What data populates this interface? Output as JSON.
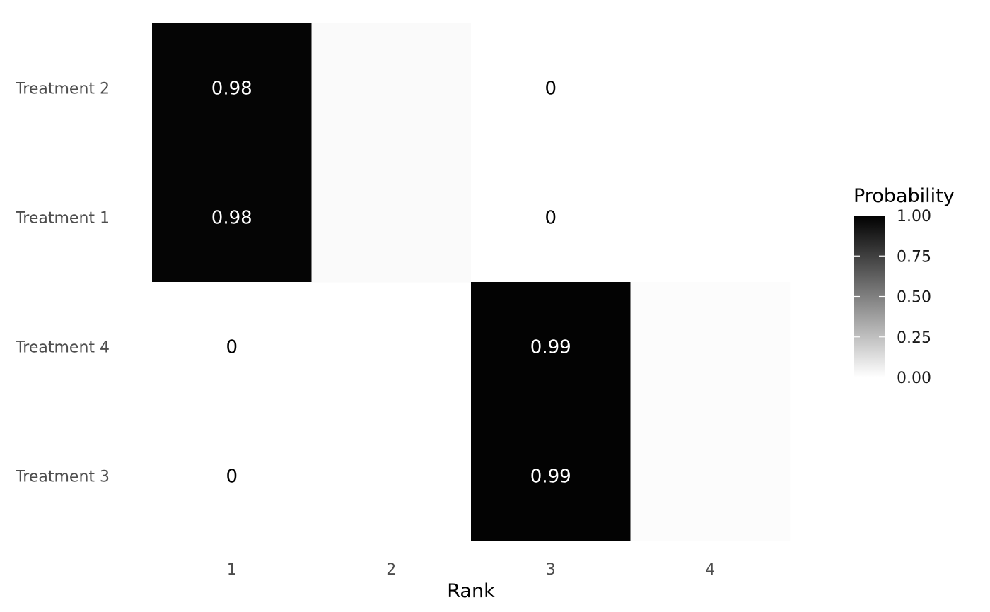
{
  "chart_data": {
    "type": "heatmap",
    "title": "",
    "xlabel": "Rank",
    "ylabel": "",
    "x_categories": [
      "1",
      "2",
      "3",
      "4"
    ],
    "y_categories": [
      "Treatment 2",
      "Treatment 1",
      "Treatment 4",
      "Treatment 3"
    ],
    "cells": [
      {
        "treatment": "Treatment 2",
        "rank": "1",
        "value": 0.98,
        "label": "0.98"
      },
      {
        "treatment": "Treatment 2",
        "rank": "2",
        "value": 0.02,
        "label": ""
      },
      {
        "treatment": "Treatment 2",
        "rank": "3",
        "value": 0,
        "label": "0"
      },
      {
        "treatment": "Treatment 1",
        "rank": "1",
        "value": 0.98,
        "label": "0.98"
      },
      {
        "treatment": "Treatment 1",
        "rank": "2",
        "value": 0.02,
        "label": ""
      },
      {
        "treatment": "Treatment 1",
        "rank": "3",
        "value": 0,
        "label": "0"
      },
      {
        "treatment": "Treatment 4",
        "rank": "1",
        "value": 0,
        "label": "0"
      },
      {
        "treatment": "Treatment 4",
        "rank": "3",
        "value": 0.99,
        "label": "0.99"
      },
      {
        "treatment": "Treatment 4",
        "rank": "4",
        "value": 0.01,
        "label": ""
      },
      {
        "treatment": "Treatment 3",
        "rank": "1",
        "value": 0,
        "label": "0"
      },
      {
        "treatment": "Treatment 3",
        "rank": "3",
        "value": 0.99,
        "label": "0.99"
      },
      {
        "treatment": "Treatment 3",
        "rank": "4",
        "value": 0.01,
        "label": ""
      }
    ],
    "color_scale": {
      "low": "#ffffff",
      "high": "#000000",
      "range": [
        0,
        1
      ]
    },
    "legend": {
      "title": "Probability",
      "ticks": [
        1.0,
        0.75,
        0.5,
        0.25,
        0.0
      ],
      "tick_labels": [
        "1.00",
        "0.75",
        "0.50",
        "0.25",
        "0.00"
      ],
      "position": "right"
    },
    "grid": false
  }
}
